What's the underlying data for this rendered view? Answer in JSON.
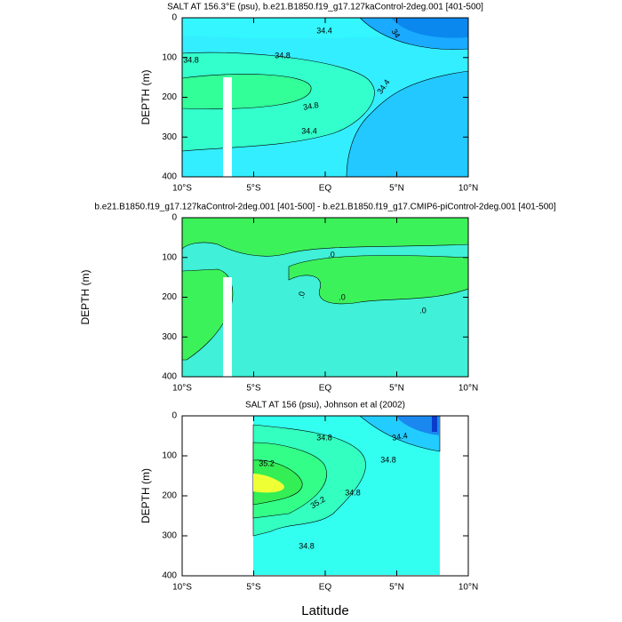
{
  "chart_data": [
    {
      "type": "contour",
      "title": "SALT AT 156.3°E (psu), b.e21.B1850.f19_g17.127kaControl-2deg.001 [401-500]",
      "ylabel": "DEPTH (m)",
      "xlim": [
        -10,
        10
      ],
      "xticks": [
        {
          "value": -10,
          "label": "10°S"
        },
        {
          "value": -5,
          "label": "5°S"
        },
        {
          "value": 0,
          "label": "EQ"
        },
        {
          "value": 5,
          "label": "5°N"
        },
        {
          "value": 10,
          "label": "10°N"
        }
      ],
      "ylim": [
        400,
        0
      ],
      "yticks": [
        0,
        100,
        200,
        300,
        400
      ],
      "contour_labels": [
        34.4,
        34,
        34.8,
        34.8,
        34.4,
        34.8,
        34.4
      ]
    },
    {
      "type": "contour",
      "title": "b.e21.B1850.f19_g17.127kaControl-2deg.001 [401-500] - b.e21.B1850.f19_g17.CMIP6-piControl-2deg.001 [401-500]",
      "ylabel": "DEPTH (m)",
      "xlim": [
        -10,
        10
      ],
      "xticks": [
        {
          "value": -10,
          "label": "10°S"
        },
        {
          "value": -5,
          "label": "5°S"
        },
        {
          "value": 0,
          "label": "EQ"
        },
        {
          "value": 5,
          "label": "5°N"
        },
        {
          "value": 10,
          "label": "10°N"
        }
      ],
      "ylim": [
        400,
        0
      ],
      "yticks": [
        0,
        100,
        200,
        300,
        400
      ],
      "contour_labels": [
        {
          "value": 0,
          "label": ".0"
        },
        {
          "value": 0,
          "label": ".0"
        },
        {
          "value": 0,
          "label": ".0"
        },
        {
          "value": 0,
          "label": ".0"
        }
      ]
    },
    {
      "type": "contour",
      "title": "SALT AT 156 (psu), Johnson et al (2002)",
      "ylabel": "DEPTH (m)",
      "xlabel": "Latitude",
      "xlim": [
        -10,
        10
      ],
      "xticks": [
        {
          "value": -10,
          "label": "10°S"
        },
        {
          "value": -5,
          "label": "5°S"
        },
        {
          "value": 0,
          "label": "EQ"
        },
        {
          "value": 5,
          "label": "5°N"
        },
        {
          "value": 10,
          "label": "10°N"
        }
      ],
      "ylim": [
        400,
        0
      ],
      "yticks": [
        0,
        100,
        200,
        300,
        400
      ],
      "contour_labels": [
        34.4,
        34.8,
        34.8,
        35.2,
        35.2,
        34.8,
        34.8
      ]
    }
  ]
}
